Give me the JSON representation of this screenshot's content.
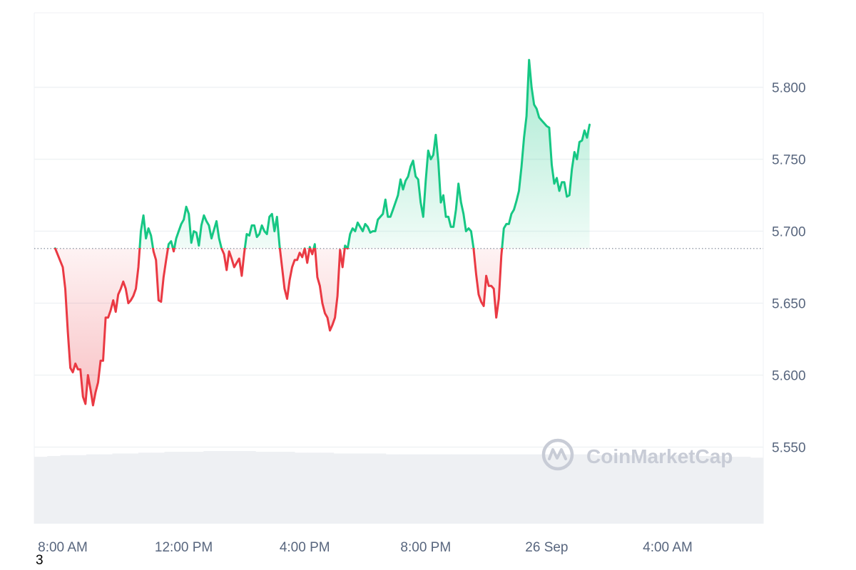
{
  "chart_data": {
    "type": "area",
    "title": "",
    "xlabel": "",
    "ylabel": "",
    "ylim": [
      5.5,
      5.84
    ],
    "baseline": 5.688,
    "y_ticks": [
      "5.550",
      "5.600",
      "5.650",
      "5.700",
      "5.750",
      "5.800"
    ],
    "y_tick_values": [
      5.55,
      5.6,
      5.65,
      5.7,
      5.75,
      5.8
    ],
    "x_range": [
      "25 Sep 7:45 AM",
      "26 Sep 7:30 AM"
    ],
    "x_ticks": [
      {
        "label": "8:00 AM",
        "time": "25 Sep 8:00 AM"
      },
      {
        "label": "12:00 PM",
        "time": "25 Sep 12:00 PM"
      },
      {
        "label": "4:00 PM",
        "time": "25 Sep 4:00 PM"
      },
      {
        "label": "8:00 PM",
        "time": "25 Sep 8:00 PM"
      },
      {
        "label": "26 Sep",
        "time": "26 Sep 12:00 AM"
      },
      {
        "label": "4:00 AM",
        "time": "26 Sep 4:00 AM"
      }
    ],
    "series": [
      {
        "name": "",
        "points": [
          [
            "25 Sep 7:45 AM",
            5.688
          ],
          [
            "25 Sep 8:00 AM",
            5.675
          ],
          [
            "25 Sep 8:05 AM",
            5.66
          ],
          [
            "25 Sep 8:10 AM",
            5.63
          ],
          [
            "25 Sep 8:15 AM",
            5.605
          ],
          [
            "25 Sep 8:20 AM",
            5.602
          ],
          [
            "25 Sep 8:25 AM",
            5.608
          ],
          [
            "25 Sep 8:30 AM",
            5.604
          ],
          [
            "25 Sep 8:35 AM",
            5.604
          ],
          [
            "25 Sep 8:40 AM",
            5.585
          ],
          [
            "25 Sep 8:45 AM",
            5.58
          ],
          [
            "25 Sep 8:50 AM",
            5.6
          ],
          [
            "25 Sep 8:55 AM",
            5.59
          ],
          [
            "25 Sep 9:00 AM",
            5.579
          ],
          [
            "25 Sep 9:05 AM",
            5.588
          ],
          [
            "25 Sep 9:10 AM",
            5.595
          ],
          [
            "25 Sep 9:15 AM",
            5.61
          ],
          [
            "25 Sep 9:20 AM",
            5.61
          ],
          [
            "25 Sep 9:25 AM",
            5.64
          ],
          [
            "25 Sep 9:30 AM",
            5.64
          ],
          [
            "25 Sep 9:35 AM",
            5.645
          ],
          [
            "25 Sep 9:40 AM",
            5.652
          ],
          [
            "25 Sep 9:45 AM",
            5.644
          ],
          [
            "25 Sep 9:50 AM",
            5.656
          ],
          [
            "25 Sep 9:55 AM",
            5.66
          ],
          [
            "25 Sep 10:00 AM",
            5.665
          ],
          [
            "25 Sep 10:05 AM",
            5.66
          ],
          [
            "25 Sep 10:10 AM",
            5.65
          ],
          [
            "25 Sep 10:15 AM",
            5.652
          ],
          [
            "25 Sep 10:20 AM",
            5.655
          ],
          [
            "25 Sep 10:25 AM",
            5.66
          ],
          [
            "25 Sep 10:30 AM",
            5.675
          ],
          [
            "25 Sep 10:35 AM",
            5.7
          ],
          [
            "25 Sep 10:40 AM",
            5.711
          ],
          [
            "25 Sep 10:45 AM",
            5.695
          ],
          [
            "25 Sep 10:50 AM",
            5.702
          ],
          [
            "25 Sep 10:55 AM",
            5.697
          ],
          [
            "25 Sep 11:00 AM",
            5.686
          ],
          [
            "25 Sep 11:05 AM",
            5.68
          ],
          [
            "25 Sep 11:10 AM",
            5.652
          ],
          [
            "25 Sep 11:15 AM",
            5.651
          ],
          [
            "25 Sep 11:20 AM",
            5.668
          ],
          [
            "25 Sep 11:25 AM",
            5.68
          ],
          [
            "25 Sep 11:30 AM",
            5.691
          ],
          [
            "25 Sep 11:35 AM",
            5.693
          ],
          [
            "25 Sep 11:40 AM",
            5.686
          ],
          [
            "25 Sep 11:45 AM",
            5.695
          ],
          [
            "25 Sep 11:50 AM",
            5.7
          ],
          [
            "25 Sep 11:55 AM",
            5.705
          ],
          [
            "25 Sep 12:00 PM",
            5.708
          ],
          [
            "25 Sep 12:05 PM",
            5.717
          ],
          [
            "25 Sep 12:10 PM",
            5.712
          ],
          [
            "25 Sep 12:15 PM",
            5.692
          ],
          [
            "25 Sep 12:20 PM",
            5.7
          ],
          [
            "25 Sep 12:25 PM",
            5.699
          ],
          [
            "25 Sep 12:30 PM",
            5.69
          ],
          [
            "25 Sep 12:35 PM",
            5.704
          ],
          [
            "25 Sep 12:40 PM",
            5.711
          ],
          [
            "25 Sep 12:45 PM",
            5.707
          ],
          [
            "25 Sep 12:50 PM",
            5.704
          ],
          [
            "25 Sep 12:55 PM",
            5.695
          ],
          [
            "25 Sep 1:00 PM",
            5.701
          ],
          [
            "25 Sep 1:05 PM",
            5.707
          ],
          [
            "25 Sep 1:10 PM",
            5.695
          ],
          [
            "25 Sep 1:15 PM",
            5.688
          ],
          [
            "25 Sep 1:20 PM",
            5.684
          ],
          [
            "25 Sep 1:25 PM",
            5.673
          ],
          [
            "25 Sep 1:30 PM",
            5.686
          ],
          [
            "25 Sep 1:35 PM",
            5.681
          ],
          [
            "25 Sep 1:40 PM",
            5.675
          ],
          [
            "25 Sep 1:45 PM",
            5.678
          ],
          [
            "25 Sep 1:50 PM",
            5.681
          ],
          [
            "25 Sep 1:55 PM",
            5.669
          ],
          [
            "25 Sep 2:00 PM",
            5.685
          ],
          [
            "25 Sep 2:05 PM",
            5.698
          ],
          [
            "25 Sep 2:10 PM",
            5.697
          ],
          [
            "25 Sep 2:15 PM",
            5.704
          ],
          [
            "25 Sep 2:20 PM",
            5.704
          ],
          [
            "25 Sep 2:25 PM",
            5.696
          ],
          [
            "25 Sep 2:30 PM",
            5.698
          ],
          [
            "25 Sep 2:35 PM",
            5.704
          ],
          [
            "25 Sep 2:40 PM",
            5.7
          ],
          [
            "25 Sep 2:45 PM",
            5.698
          ],
          [
            "25 Sep 2:50 PM",
            5.71
          ],
          [
            "25 Sep 2:55 PM",
            5.712
          ],
          [
            "25 Sep 3:00 PM",
            5.7
          ],
          [
            "25 Sep 3:05 PM",
            5.71
          ],
          [
            "25 Sep 3:10 PM",
            5.69
          ],
          [
            "25 Sep 3:15 PM",
            5.675
          ],
          [
            "25 Sep 3:20 PM",
            5.66
          ],
          [
            "25 Sep 3:25 PM",
            5.653
          ],
          [
            "25 Sep 3:30 PM",
            5.666
          ],
          [
            "25 Sep 3:35 PM",
            5.675
          ],
          [
            "25 Sep 3:40 PM",
            5.68
          ],
          [
            "25 Sep 3:45 PM",
            5.68
          ],
          [
            "25 Sep 3:50 PM",
            5.685
          ],
          [
            "25 Sep 3:55 PM",
            5.682
          ],
          [
            "25 Sep 4:00 PM",
            5.688
          ],
          [
            "25 Sep 4:05 PM",
            5.678
          ],
          [
            "25 Sep 4:10 PM",
            5.689
          ],
          [
            "25 Sep 4:15 PM",
            5.684
          ],
          [
            "25 Sep 4:20 PM",
            5.691
          ],
          [
            "25 Sep 4:25 PM",
            5.668
          ],
          [
            "25 Sep 4:30 PM",
            5.662
          ],
          [
            "25 Sep 4:35 PM",
            5.65
          ],
          [
            "25 Sep 4:40 PM",
            5.643
          ],
          [
            "25 Sep 4:45 PM",
            5.64
          ],
          [
            "25 Sep 4:50 PM",
            5.631
          ],
          [
            "25 Sep 4:55 PM",
            5.635
          ],
          [
            "25 Sep 5:00 PM",
            5.64
          ],
          [
            "25 Sep 5:05 PM",
            5.655
          ],
          [
            "25 Sep 5:10 PM",
            5.687
          ],
          [
            "25 Sep 5:15 PM",
            5.675
          ],
          [
            "25 Sep 5:20 PM",
            5.69
          ],
          [
            "25 Sep 5:25 PM",
            5.688
          ],
          [
            "25 Sep 5:30 PM",
            5.698
          ],
          [
            "25 Sep 5:35 PM",
            5.702
          ],
          [
            "25 Sep 5:40 PM",
            5.7
          ],
          [
            "25 Sep 5:45 PM",
            5.706
          ],
          [
            "25 Sep 5:50 PM",
            5.703
          ],
          [
            "25 Sep 5:55 PM",
            5.7
          ],
          [
            "25 Sep 6:00 PM",
            5.705
          ],
          [
            "25 Sep 6:05 PM",
            5.703
          ],
          [
            "25 Sep 6:10 PM",
            5.699
          ],
          [
            "25 Sep 6:15 PM",
            5.7
          ],
          [
            "25 Sep 6:20 PM",
            5.7
          ],
          [
            "25 Sep 6:25 PM",
            5.708
          ],
          [
            "25 Sep 6:30 PM",
            5.71
          ],
          [
            "25 Sep 6:35 PM",
            5.712
          ],
          [
            "25 Sep 6:40 PM",
            5.722
          ],
          [
            "25 Sep 6:45 PM",
            5.71
          ],
          [
            "25 Sep 6:50 PM",
            5.71
          ],
          [
            "25 Sep 6:55 PM",
            5.715
          ],
          [
            "25 Sep 7:00 PM",
            5.72
          ],
          [
            "25 Sep 7:05 PM",
            5.725
          ],
          [
            "25 Sep 7:10 PM",
            5.736
          ],
          [
            "25 Sep 7:15 PM",
            5.729
          ],
          [
            "25 Sep 7:20 PM",
            5.735
          ],
          [
            "25 Sep 7:25 PM",
            5.738
          ],
          [
            "25 Sep 7:30 PM",
            5.745
          ],
          [
            "25 Sep 7:35 PM",
            5.749
          ],
          [
            "25 Sep 7:40 PM",
            5.738
          ],
          [
            "25 Sep 7:45 PM",
            5.736
          ],
          [
            "25 Sep 7:50 PM",
            5.72
          ],
          [
            "25 Sep 7:55 PM",
            5.71
          ],
          [
            "25 Sep 8:00 PM",
            5.735
          ],
          [
            "25 Sep 8:05 PM",
            5.756
          ],
          [
            "25 Sep 8:10 PM",
            5.75
          ],
          [
            "25 Sep 8:15 PM",
            5.753
          ],
          [
            "25 Sep 8:20 PM",
            5.767
          ],
          [
            "25 Sep 8:25 PM",
            5.748
          ],
          [
            "25 Sep 8:30 PM",
            5.72
          ],
          [
            "25 Sep 8:35 PM",
            5.725
          ],
          [
            "25 Sep 8:40 PM",
            5.71
          ],
          [
            "25 Sep 8:45 PM",
            5.71
          ],
          [
            "25 Sep 8:50 PM",
            5.703
          ],
          [
            "25 Sep 8:55 PM",
            5.703
          ],
          [
            "25 Sep 9:00 PM",
            5.715
          ],
          [
            "25 Sep 9:05 PM",
            5.733
          ],
          [
            "25 Sep 9:10 PM",
            5.72
          ],
          [
            "25 Sep 9:15 PM",
            5.712
          ],
          [
            "25 Sep 9:20 PM",
            5.7
          ],
          [
            "25 Sep 9:25 PM",
            5.702
          ],
          [
            "25 Sep 9:30 PM",
            5.7
          ],
          [
            "25 Sep 9:35 PM",
            5.688
          ],
          [
            "25 Sep 9:40 PM",
            5.67
          ],
          [
            "25 Sep 9:45 PM",
            5.656
          ],
          [
            "25 Sep 9:50 PM",
            5.651
          ],
          [
            "25 Sep 9:55 PM",
            5.648
          ],
          [
            "25 Sep 10:00 PM",
            5.669
          ],
          [
            "25 Sep 10:05 PM",
            5.662
          ],
          [
            "25 Sep 10:10 PM",
            5.662
          ],
          [
            "25 Sep 10:15 PM",
            5.66
          ],
          [
            "25 Sep 10:20 PM",
            5.64
          ],
          [
            "25 Sep 10:25 PM",
            5.653
          ],
          [
            "25 Sep 10:30 PM",
            5.683
          ],
          [
            "25 Sep 10:35 PM",
            5.702
          ],
          [
            "25 Sep 10:40 PM",
            5.705
          ],
          [
            "25 Sep 10:45 PM",
            5.705
          ],
          [
            "25 Sep 10:50 PM",
            5.712
          ],
          [
            "25 Sep 10:55 PM",
            5.715
          ],
          [
            "25 Sep 11:00 PM",
            5.721
          ],
          [
            "25 Sep 11:05 PM",
            5.728
          ],
          [
            "25 Sep 11:10 PM",
            5.745
          ],
          [
            "25 Sep 11:15 PM",
            5.765
          ],
          [
            "25 Sep 11:20 PM",
            5.78
          ],
          [
            "25 Sep 11:25 PM",
            5.819
          ],
          [
            "25 Sep 11:30 PM",
            5.8
          ],
          [
            "25 Sep 11:35 PM",
            5.788
          ],
          [
            "25 Sep 11:40 PM",
            5.785
          ],
          [
            "25 Sep 11:45 PM",
            5.779
          ],
          [
            "25 Sep 11:50 PM",
            5.777
          ],
          [
            "25 Sep 11:55 PM",
            5.775
          ],
          [
            "26 Sep 12:00 AM",
            5.773
          ],
          [
            "26 Sep 12:05 AM",
            5.772
          ],
          [
            "26 Sep 12:10 AM",
            5.746
          ],
          [
            "26 Sep 12:15 AM",
            5.733
          ],
          [
            "26 Sep 12:20 AM",
            5.737
          ],
          [
            "26 Sep 12:25 AM",
            5.728
          ],
          [
            "26 Sep 12:30 AM",
            5.734
          ],
          [
            "26 Sep 12:35 AM",
            5.734
          ],
          [
            "26 Sep 12:40 AM",
            5.724
          ],
          [
            "26 Sep 12:45 AM",
            5.725
          ],
          [
            "26 Sep 12:50 AM",
            5.743
          ],
          [
            "26 Sep 12:55 AM",
            5.755
          ],
          [
            "26 Sep 1:00 AM",
            5.75
          ],
          [
            "26 Sep 1:05 AM",
            5.762
          ],
          [
            "26 Sep 1:10 AM",
            5.763
          ],
          [
            "26 Sep 1:15 AM",
            5.77
          ],
          [
            "26 Sep 1:20 AM",
            5.765
          ],
          [
            "26 Sep 1:25 AM",
            5.774
          ]
        ]
      }
    ],
    "volume": [
      5,
      6,
      7,
      7,
      8,
      8,
      9,
      9,
      10,
      10,
      11,
      11,
      11,
      12,
      12,
      12,
      12,
      11,
      11,
      11,
      10,
      10,
      10,
      9,
      9,
      9,
      9,
      8,
      8,
      8,
      8,
      8,
      8,
      8,
      8,
      8,
      8,
      8,
      8,
      8,
      8,
      8,
      8,
      7,
      7,
      7,
      7,
      7,
      7,
      7,
      7,
      6,
      6,
      5,
      5,
      4
    ],
    "colors": {
      "up": "#16c784",
      "down": "#ea3943",
      "up_fill": "#16c784",
      "down_fill": "#ea3943",
      "baseline": "#9aa0ac",
      "grid": "#eff2f5",
      "volume": "#eef0f3"
    },
    "grid": true,
    "legend": "none"
  },
  "watermark": {
    "text": "CoinMarketCap",
    "icon": "coinmarketcap-logo-icon"
  },
  "corner_label": "3"
}
